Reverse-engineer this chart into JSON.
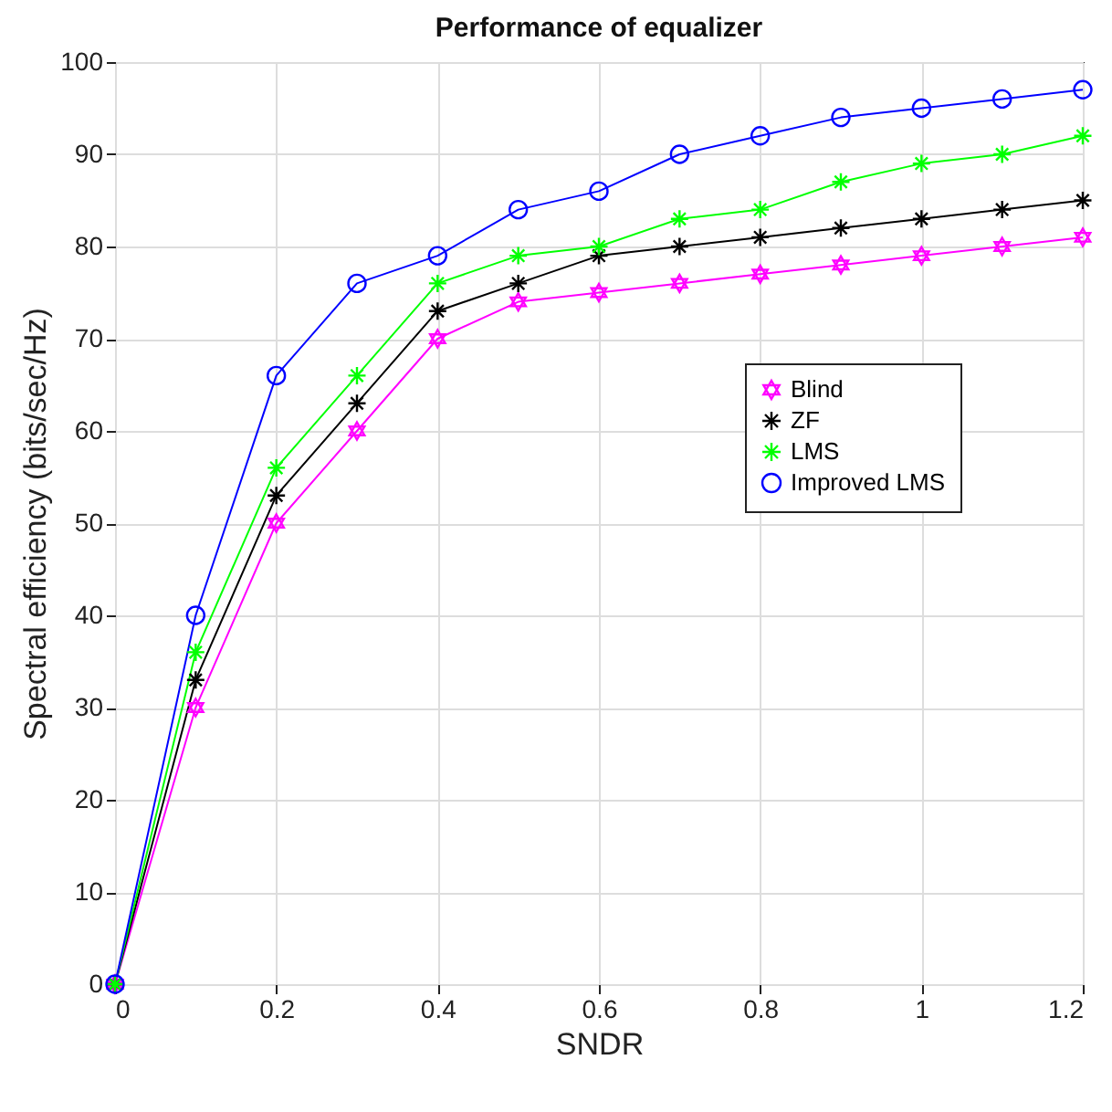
{
  "chart_data": {
    "type": "line",
    "title": "Performance of equalizer",
    "xlabel": "SNDR",
    "ylabel": "Spectral efficiency (bits/sec/Hz)",
    "x": [
      0,
      0.1,
      0.2,
      0.3,
      0.4,
      0.5,
      0.6,
      0.7,
      0.8,
      0.9,
      1,
      1.1,
      1.2
    ],
    "series": [
      {
        "name": "Blind",
        "color": "#ff00ff",
        "marker": "star",
        "values": [
          0,
          30,
          50,
          60,
          70,
          74,
          75,
          76,
          77,
          78,
          79,
          80,
          81
        ]
      },
      {
        "name": "ZF",
        "color": "#000000",
        "marker": "cross",
        "values": [
          0,
          33,
          53,
          63,
          73,
          76,
          79,
          80,
          81,
          82,
          83,
          84,
          85
        ]
      },
      {
        "name": "LMS",
        "color": "#00ff00",
        "marker": "cross",
        "values": [
          0,
          36,
          56,
          66,
          76,
          79,
          80,
          83,
          84,
          87,
          89,
          90,
          92
        ]
      },
      {
        "name": "Improved LMS",
        "color": "#0000ff",
        "marker": "circle",
        "values": [
          0,
          40,
          66,
          76,
          79,
          84,
          86,
          90,
          92,
          94,
          95,
          96,
          97
        ]
      }
    ],
    "xlim": [
      0,
      1.2
    ],
    "xticks": [
      0,
      0.2,
      0.4,
      0.6,
      0.8,
      1,
      1.2
    ],
    "ylim": [
      0,
      100
    ],
    "yticks": [
      0,
      10,
      20,
      30,
      40,
      50,
      60,
      70,
      80,
      90,
      100
    ],
    "grid": true,
    "legend": "right",
    "line_style": "solid"
  }
}
